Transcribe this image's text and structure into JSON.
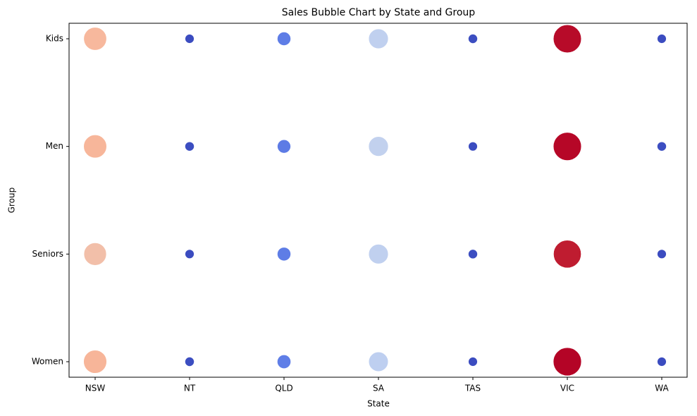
{
  "chart_data": {
    "type": "bubble",
    "title": "Sales Bubble Chart by State and Group",
    "x_label": "State",
    "y_label": "Group",
    "x_categories": [
      "NSW",
      "NT",
      "QLD",
      "SA",
      "TAS",
      "VIC",
      "WA"
    ],
    "y_categories": [
      "Kids",
      "Men",
      "Seniors",
      "Women"
    ],
    "values": [
      [
        18600000,
        5500000,
        8500000,
        14500000,
        5600000,
        26300000,
        5500000
      ],
      [
        18800000,
        5600000,
        8400000,
        14600000,
        5500000,
        26400000,
        5600000
      ],
      [
        18100000,
        5500000,
        8500000,
        14500000,
        5600000,
        25800000,
        5500000
      ],
      [
        18900000,
        5600000,
        8600000,
        14400000,
        5500000,
        26500000,
        5500000
      ]
    ],
    "colormap": "coolwarm"
  }
}
